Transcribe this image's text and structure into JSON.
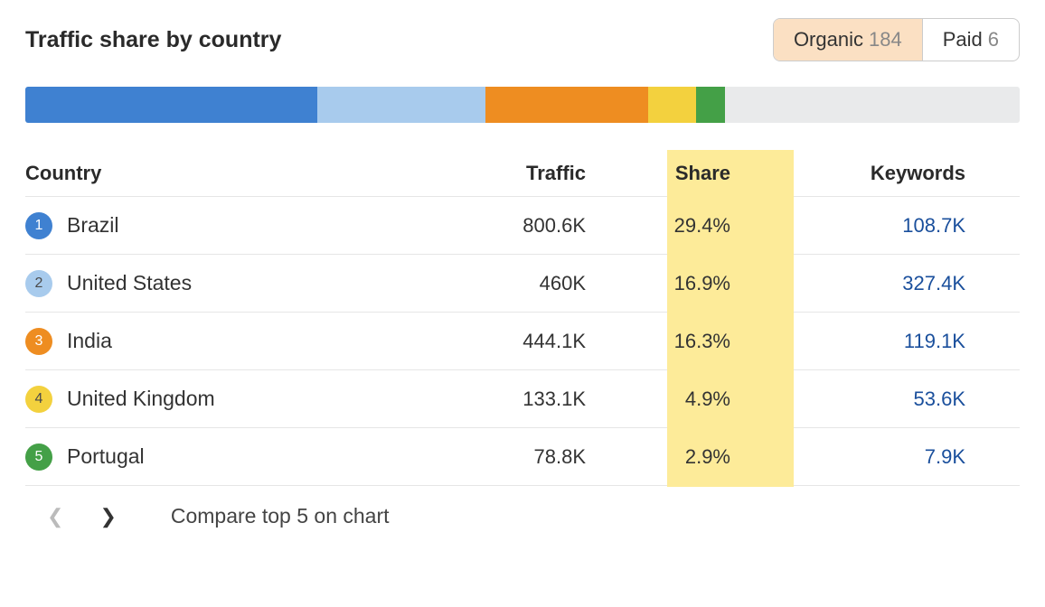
{
  "title": "Traffic share by country",
  "toggle": {
    "organic": {
      "label": "Organic",
      "count": "184",
      "active": true,
      "bg": "#fbe0c3"
    },
    "paid": {
      "label": "Paid",
      "count": "6",
      "active": false
    }
  },
  "share_bar": {
    "segments": [
      {
        "width": 29.4,
        "color": "#3f81d1"
      },
      {
        "width": 16.9,
        "color": "#a8cbed"
      },
      {
        "width": 16.3,
        "color": "#ee8d21"
      },
      {
        "width": 4.9,
        "color": "#f3d13e"
      },
      {
        "width": 2.9,
        "color": "#44a047"
      },
      {
        "width": 29.6,
        "color": "#e9eaeb"
      }
    ]
  },
  "columns": {
    "country": "Country",
    "traffic": "Traffic",
    "share": "Share",
    "keywords": "Keywords"
  },
  "highlight_color": "#fdeb99",
  "rows": [
    {
      "rank": "1",
      "badge_color": "#3f81d1",
      "badge_text_light": false,
      "country": "Brazil",
      "traffic": "800.6K",
      "share": "29.4%",
      "keywords": "108.7K"
    },
    {
      "rank": "2",
      "badge_color": "#a8cbed",
      "badge_text_light": true,
      "country": "United States",
      "traffic": "460K",
      "share": "16.9%",
      "keywords": "327.4K"
    },
    {
      "rank": "3",
      "badge_color": "#ee8d21",
      "badge_text_light": false,
      "country": "India",
      "traffic": "444.1K",
      "share": "16.3%",
      "keywords": "119.1K"
    },
    {
      "rank": "4",
      "badge_color": "#f3d13e",
      "badge_text_light": true,
      "country": "United Kingdom",
      "traffic": "133.1K",
      "share": "4.9%",
      "keywords": "53.6K"
    },
    {
      "rank": "5",
      "badge_color": "#44a047",
      "badge_text_light": false,
      "country": "Portugal",
      "traffic": "78.8K",
      "share": "2.9%",
      "keywords": "7.9K"
    }
  ],
  "footer": {
    "prev_disabled": true,
    "compare_label": "Compare top 5 on chart"
  },
  "link_color": "#1a4f9c"
}
